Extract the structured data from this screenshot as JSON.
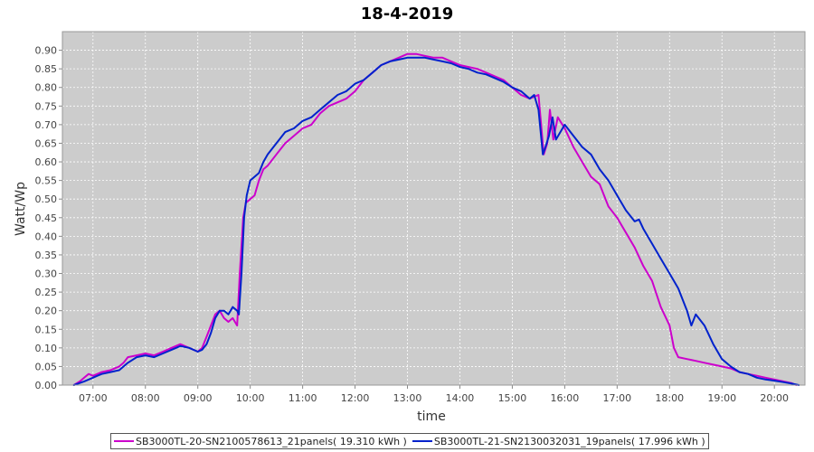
{
  "chart_data": {
    "type": "line",
    "title": "18-4-2019",
    "xlabel": "time",
    "ylabel": "Watt/Wp",
    "xlim": [
      "06:25",
      "20:35"
    ],
    "ylim": [
      0,
      0.95
    ],
    "x_ticks": [
      "07:00",
      "08:00",
      "09:00",
      "10:00",
      "11:00",
      "12:00",
      "13:00",
      "14:00",
      "15:00",
      "16:00",
      "17:00",
      "18:00",
      "19:00",
      "20:00"
    ],
    "y_ticks": [
      "0.00",
      "0.05",
      "0.10",
      "0.15",
      "0.20",
      "0.25",
      "0.30",
      "0.35",
      "0.40",
      "0.45",
      "0.50",
      "0.55",
      "0.60",
      "0.65",
      "0.70",
      "0.75",
      "0.80",
      "0.85",
      "0.90"
    ],
    "grid": true,
    "legend_position": "bottom",
    "background": "#cccccc",
    "series": [
      {
        "name": "SB3000TL-20-SN2100578613_21panels( 19.310 kWh )",
        "color": "#cc00cc",
        "points": [
          [
            "06:38",
            0.0
          ],
          [
            "06:45",
            0.01
          ],
          [
            "06:50",
            0.02
          ],
          [
            "06:55",
            0.03
          ],
          [
            "07:00",
            0.025
          ],
          [
            "07:05",
            0.03
          ],
          [
            "07:10",
            0.035
          ],
          [
            "07:20",
            0.04
          ],
          [
            "07:30",
            0.05
          ],
          [
            "07:35",
            0.06
          ],
          [
            "07:40",
            0.075
          ],
          [
            "07:50",
            0.08
          ],
          [
            "08:00",
            0.085
          ],
          [
            "08:10",
            0.08
          ],
          [
            "08:20",
            0.09
          ],
          [
            "08:30",
            0.1
          ],
          [
            "08:40",
            0.11
          ],
          [
            "08:50",
            0.1
          ],
          [
            "09:00",
            0.09
          ],
          [
            "09:05",
            0.1
          ],
          [
            "09:10",
            0.13
          ],
          [
            "09:15",
            0.16
          ],
          [
            "09:20",
            0.19
          ],
          [
            "09:25",
            0.2
          ],
          [
            "09:30",
            0.18
          ],
          [
            "09:35",
            0.17
          ],
          [
            "09:40",
            0.18
          ],
          [
            "09:45",
            0.16
          ],
          [
            "09:48",
            0.3
          ],
          [
            "09:52",
            0.45
          ],
          [
            "09:55",
            0.49
          ],
          [
            "10:00",
            0.5
          ],
          [
            "10:05",
            0.51
          ],
          [
            "10:10",
            0.55
          ],
          [
            "10:15",
            0.58
          ],
          [
            "10:20",
            0.59
          ],
          [
            "10:30",
            0.62
          ],
          [
            "10:40",
            0.65
          ],
          [
            "10:50",
            0.67
          ],
          [
            "11:00",
            0.69
          ],
          [
            "11:10",
            0.7
          ],
          [
            "11:20",
            0.73
          ],
          [
            "11:30",
            0.75
          ],
          [
            "11:40",
            0.76
          ],
          [
            "11:50",
            0.77
          ],
          [
            "12:00",
            0.79
          ],
          [
            "12:10",
            0.82
          ],
          [
            "12:20",
            0.84
          ],
          [
            "12:30",
            0.86
          ],
          [
            "12:40",
            0.87
          ],
          [
            "12:50",
            0.88
          ],
          [
            "13:00",
            0.89
          ],
          [
            "13:10",
            0.89
          ],
          [
            "13:20",
            0.885
          ],
          [
            "13:30",
            0.88
          ],
          [
            "13:40",
            0.88
          ],
          [
            "13:50",
            0.87
          ],
          [
            "14:00",
            0.86
          ],
          [
            "14:10",
            0.855
          ],
          [
            "14:20",
            0.85
          ],
          [
            "14:30",
            0.84
          ],
          [
            "14:40",
            0.83
          ],
          [
            "14:50",
            0.82
          ],
          [
            "15:00",
            0.8
          ],
          [
            "15:10",
            0.78
          ],
          [
            "15:20",
            0.77
          ],
          [
            "15:30",
            0.78
          ],
          [
            "15:33",
            0.7
          ],
          [
            "15:36",
            0.62
          ],
          [
            "15:40",
            0.65
          ],
          [
            "15:43",
            0.74
          ],
          [
            "15:47",
            0.66
          ],
          [
            "15:52",
            0.72
          ],
          [
            "16:00",
            0.69
          ],
          [
            "16:10",
            0.64
          ],
          [
            "16:20",
            0.6
          ],
          [
            "16:30",
            0.56
          ],
          [
            "16:40",
            0.54
          ],
          [
            "16:50",
            0.48
          ],
          [
            "17:00",
            0.45
          ],
          [
            "17:10",
            0.41
          ],
          [
            "17:20",
            0.37
          ],
          [
            "17:30",
            0.32
          ],
          [
            "17:40",
            0.28
          ],
          [
            "17:50",
            0.21
          ],
          [
            "18:00",
            0.16
          ],
          [
            "18:05",
            0.1
          ],
          [
            "18:10",
            0.075
          ],
          [
            "18:20",
            0.07
          ],
          [
            "18:30",
            0.065
          ],
          [
            "18:40",
            0.06
          ],
          [
            "18:50",
            0.055
          ],
          [
            "19:00",
            0.05
          ],
          [
            "19:10",
            0.045
          ],
          [
            "19:20",
            0.035
          ],
          [
            "19:30",
            0.03
          ],
          [
            "19:40",
            0.025
          ],
          [
            "19:50",
            0.02
          ],
          [
            "20:00",
            0.015
          ],
          [
            "20:10",
            0.01
          ],
          [
            "20:20",
            0.005
          ],
          [
            "20:25",
            0.0
          ]
        ]
      },
      {
        "name": "SB3000TL-21-SN2130032031_19panels( 17.996 kWh )",
        "color": "#0022cc",
        "points": [
          [
            "06:38",
            0.0
          ],
          [
            "06:50",
            0.01
          ],
          [
            "07:00",
            0.02
          ],
          [
            "07:05",
            0.025
          ],
          [
            "07:10",
            0.03
          ],
          [
            "07:20",
            0.035
          ],
          [
            "07:30",
            0.04
          ],
          [
            "07:40",
            0.06
          ],
          [
            "07:50",
            0.075
          ],
          [
            "08:00",
            0.08
          ],
          [
            "08:10",
            0.075
          ],
          [
            "08:20",
            0.085
          ],
          [
            "08:30",
            0.095
          ],
          [
            "08:40",
            0.105
          ],
          [
            "08:50",
            0.1
          ],
          [
            "09:00",
            0.09
          ],
          [
            "09:05",
            0.095
          ],
          [
            "09:10",
            0.11
          ],
          [
            "09:15",
            0.14
          ],
          [
            "09:20",
            0.18
          ],
          [
            "09:25",
            0.2
          ],
          [
            "09:30",
            0.2
          ],
          [
            "09:35",
            0.19
          ],
          [
            "09:40",
            0.21
          ],
          [
            "09:45",
            0.2
          ],
          [
            "09:47",
            0.19
          ],
          [
            "09:50",
            0.3
          ],
          [
            "09:53",
            0.45
          ],
          [
            "09:56",
            0.51
          ],
          [
            "10:00",
            0.55
          ],
          [
            "10:05",
            0.56
          ],
          [
            "10:10",
            0.57
          ],
          [
            "10:15",
            0.6
          ],
          [
            "10:20",
            0.62
          ],
          [
            "10:30",
            0.65
          ],
          [
            "10:40",
            0.68
          ],
          [
            "10:50",
            0.69
          ],
          [
            "11:00",
            0.71
          ],
          [
            "11:10",
            0.72
          ],
          [
            "11:20",
            0.74
          ],
          [
            "11:30",
            0.76
          ],
          [
            "11:40",
            0.78
          ],
          [
            "11:50",
            0.79
          ],
          [
            "12:00",
            0.81
          ],
          [
            "12:10",
            0.82
          ],
          [
            "12:20",
            0.84
          ],
          [
            "12:30",
            0.86
          ],
          [
            "12:40",
            0.87
          ],
          [
            "12:50",
            0.875
          ],
          [
            "13:00",
            0.88
          ],
          [
            "13:10",
            0.88
          ],
          [
            "13:20",
            0.88
          ],
          [
            "13:30",
            0.875
          ],
          [
            "13:40",
            0.87
          ],
          [
            "13:50",
            0.865
          ],
          [
            "14:00",
            0.855
          ],
          [
            "14:10",
            0.85
          ],
          [
            "14:20",
            0.84
          ],
          [
            "14:30",
            0.835
          ],
          [
            "14:40",
            0.825
          ],
          [
            "14:50",
            0.815
          ],
          [
            "15:00",
            0.8
          ],
          [
            "15:10",
            0.79
          ],
          [
            "15:20",
            0.77
          ],
          [
            "15:25",
            0.78
          ],
          [
            "15:30",
            0.74
          ],
          [
            "15:35",
            0.62
          ],
          [
            "15:38",
            0.64
          ],
          [
            "15:42",
            0.67
          ],
          [
            "15:46",
            0.72
          ],
          [
            "15:50",
            0.66
          ],
          [
            "16:00",
            0.7
          ],
          [
            "16:10",
            0.67
          ],
          [
            "16:20",
            0.64
          ],
          [
            "16:30",
            0.62
          ],
          [
            "16:40",
            0.58
          ],
          [
            "16:50",
            0.55
          ],
          [
            "17:00",
            0.51
          ],
          [
            "17:10",
            0.47
          ],
          [
            "17:20",
            0.44
          ],
          [
            "17:25",
            0.445
          ],
          [
            "17:30",
            0.42
          ],
          [
            "17:40",
            0.38
          ],
          [
            "17:50",
            0.34
          ],
          [
            "18:00",
            0.3
          ],
          [
            "18:10",
            0.26
          ],
          [
            "18:20",
            0.2
          ],
          [
            "18:25",
            0.16
          ],
          [
            "18:30",
            0.19
          ],
          [
            "18:40",
            0.16
          ],
          [
            "18:50",
            0.11
          ],
          [
            "19:00",
            0.07
          ],
          [
            "19:10",
            0.05
          ],
          [
            "19:20",
            0.035
          ],
          [
            "19:30",
            0.03
          ],
          [
            "19:40",
            0.02
          ],
          [
            "19:50",
            0.015
          ],
          [
            "20:00",
            0.012
          ],
          [
            "20:10",
            0.008
          ],
          [
            "20:20",
            0.004
          ],
          [
            "20:28",
            0.0
          ]
        ]
      }
    ]
  }
}
